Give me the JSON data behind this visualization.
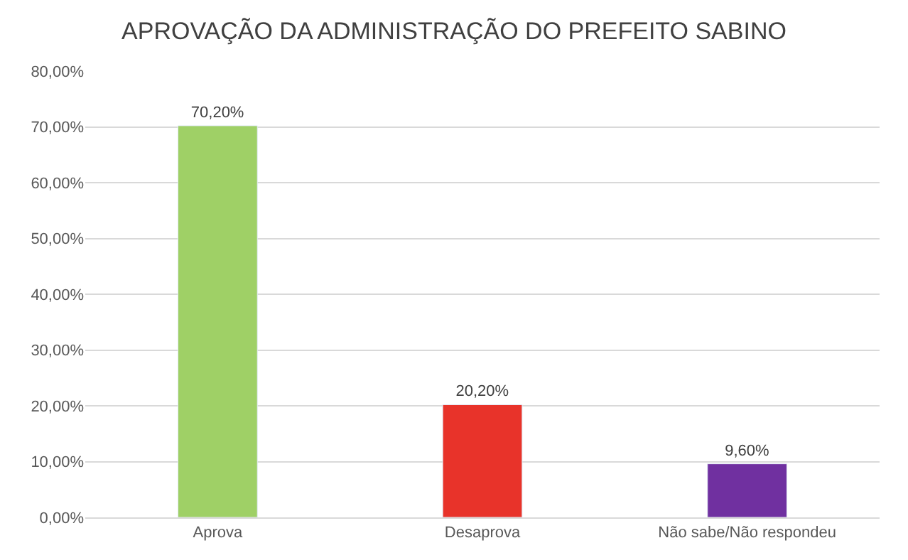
{
  "chart_data": {
    "type": "bar",
    "title": "APROVAÇÃO DA ADMINISTRAÇÃO DO PREFEITO SABINO",
    "categories": [
      "Aprova",
      "Desaprova",
      "Não sabe/Não respondeu"
    ],
    "values": [
      70.2,
      20.2,
      9.6
    ],
    "colors": [
      "#9fd066",
      "#e8332a",
      "#7030a0"
    ],
    "value_labels": [
      "70,20%",
      "20,20%",
      "9,60%"
    ],
    "ylim": [
      0,
      80
    ],
    "yticks": [
      {
        "value": 0,
        "label": "0,00%"
      },
      {
        "value": 10,
        "label": "10,00%"
      },
      {
        "value": 20,
        "label": "20,00%"
      },
      {
        "value": 30,
        "label": "30,00%"
      },
      {
        "value": 40,
        "label": "40,00%"
      },
      {
        "value": 50,
        "label": "50,00%"
      },
      {
        "value": 60,
        "label": "60,00%"
      },
      {
        "value": 70,
        "label": "70,00%"
      },
      {
        "value": 80,
        "label": "80,00%"
      }
    ],
    "grid": "y",
    "legend": false
  }
}
